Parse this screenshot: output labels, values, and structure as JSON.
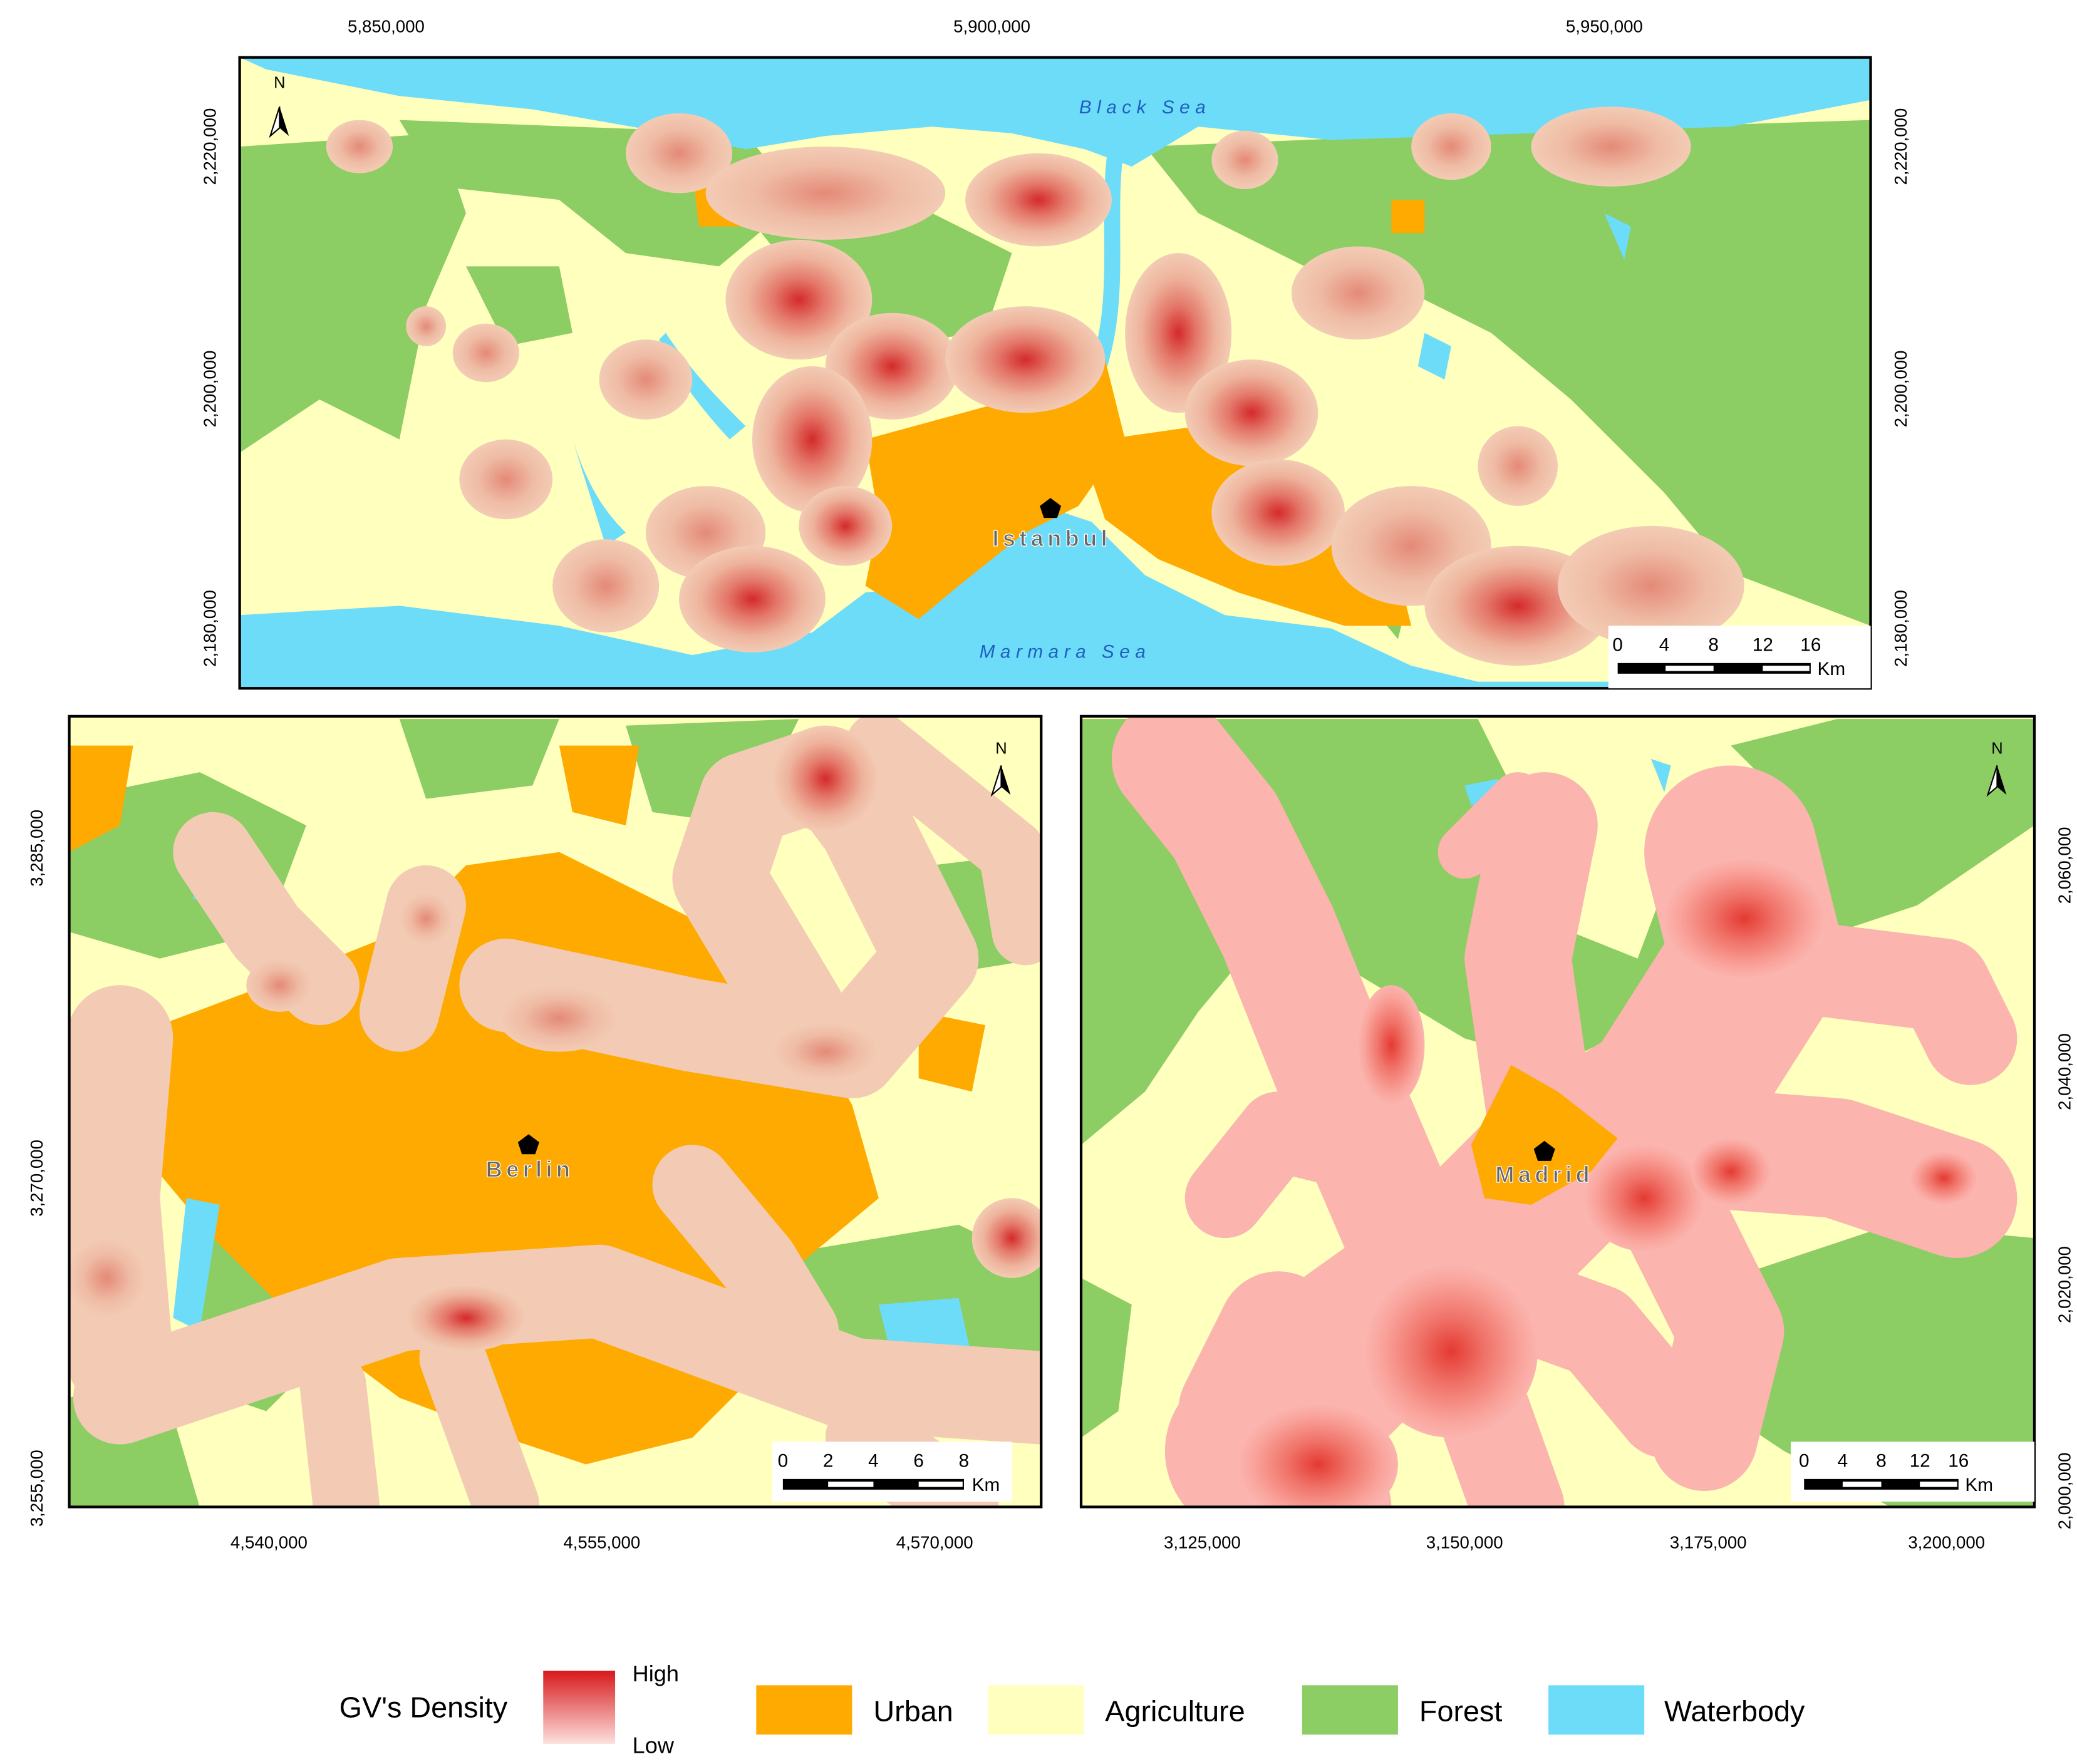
{
  "maps": [
    {
      "city": "Istanbul",
      "sea_labels": [
        "Black Sea",
        "Marmara Sea"
      ],
      "x_ticks": [
        "5,850,000",
        "5,900,000",
        "5,950,000"
      ],
      "y_ticks": [
        "2,220,000",
        "2,200,000",
        "2,180,000"
      ],
      "scale_bar": [
        "0",
        "4",
        "8",
        "12",
        "16"
      ],
      "scale_unit": "Km",
      "north": "N"
    },
    {
      "city": "Berlin",
      "x_ticks": [
        "4,540,000",
        "4,555,000",
        "4,570,000"
      ],
      "y_ticks": [
        "3,285,000",
        "3,270,000",
        "3,255,000"
      ],
      "scale_bar": [
        "0",
        "2",
        "4",
        "6",
        "8"
      ],
      "scale_unit": "Km",
      "north": "N"
    },
    {
      "city": "Madrid",
      "x_ticks": [
        "3,125,000",
        "3,150,000",
        "3,175,000",
        "3,200,000"
      ],
      "y_ticks": [
        "2,060,000",
        "2,040,000",
        "2,020,000",
        "2,000,000"
      ],
      "scale_bar": [
        "0",
        "4",
        "8",
        "12",
        "16"
      ],
      "scale_unit": "Km",
      "north": "N"
    }
  ],
  "legend": {
    "density_title": "GV's Density",
    "high": "High",
    "low": "Low",
    "classes": [
      "Urban",
      "Agriculture",
      "Forest",
      "Waterbody"
    ]
  }
}
